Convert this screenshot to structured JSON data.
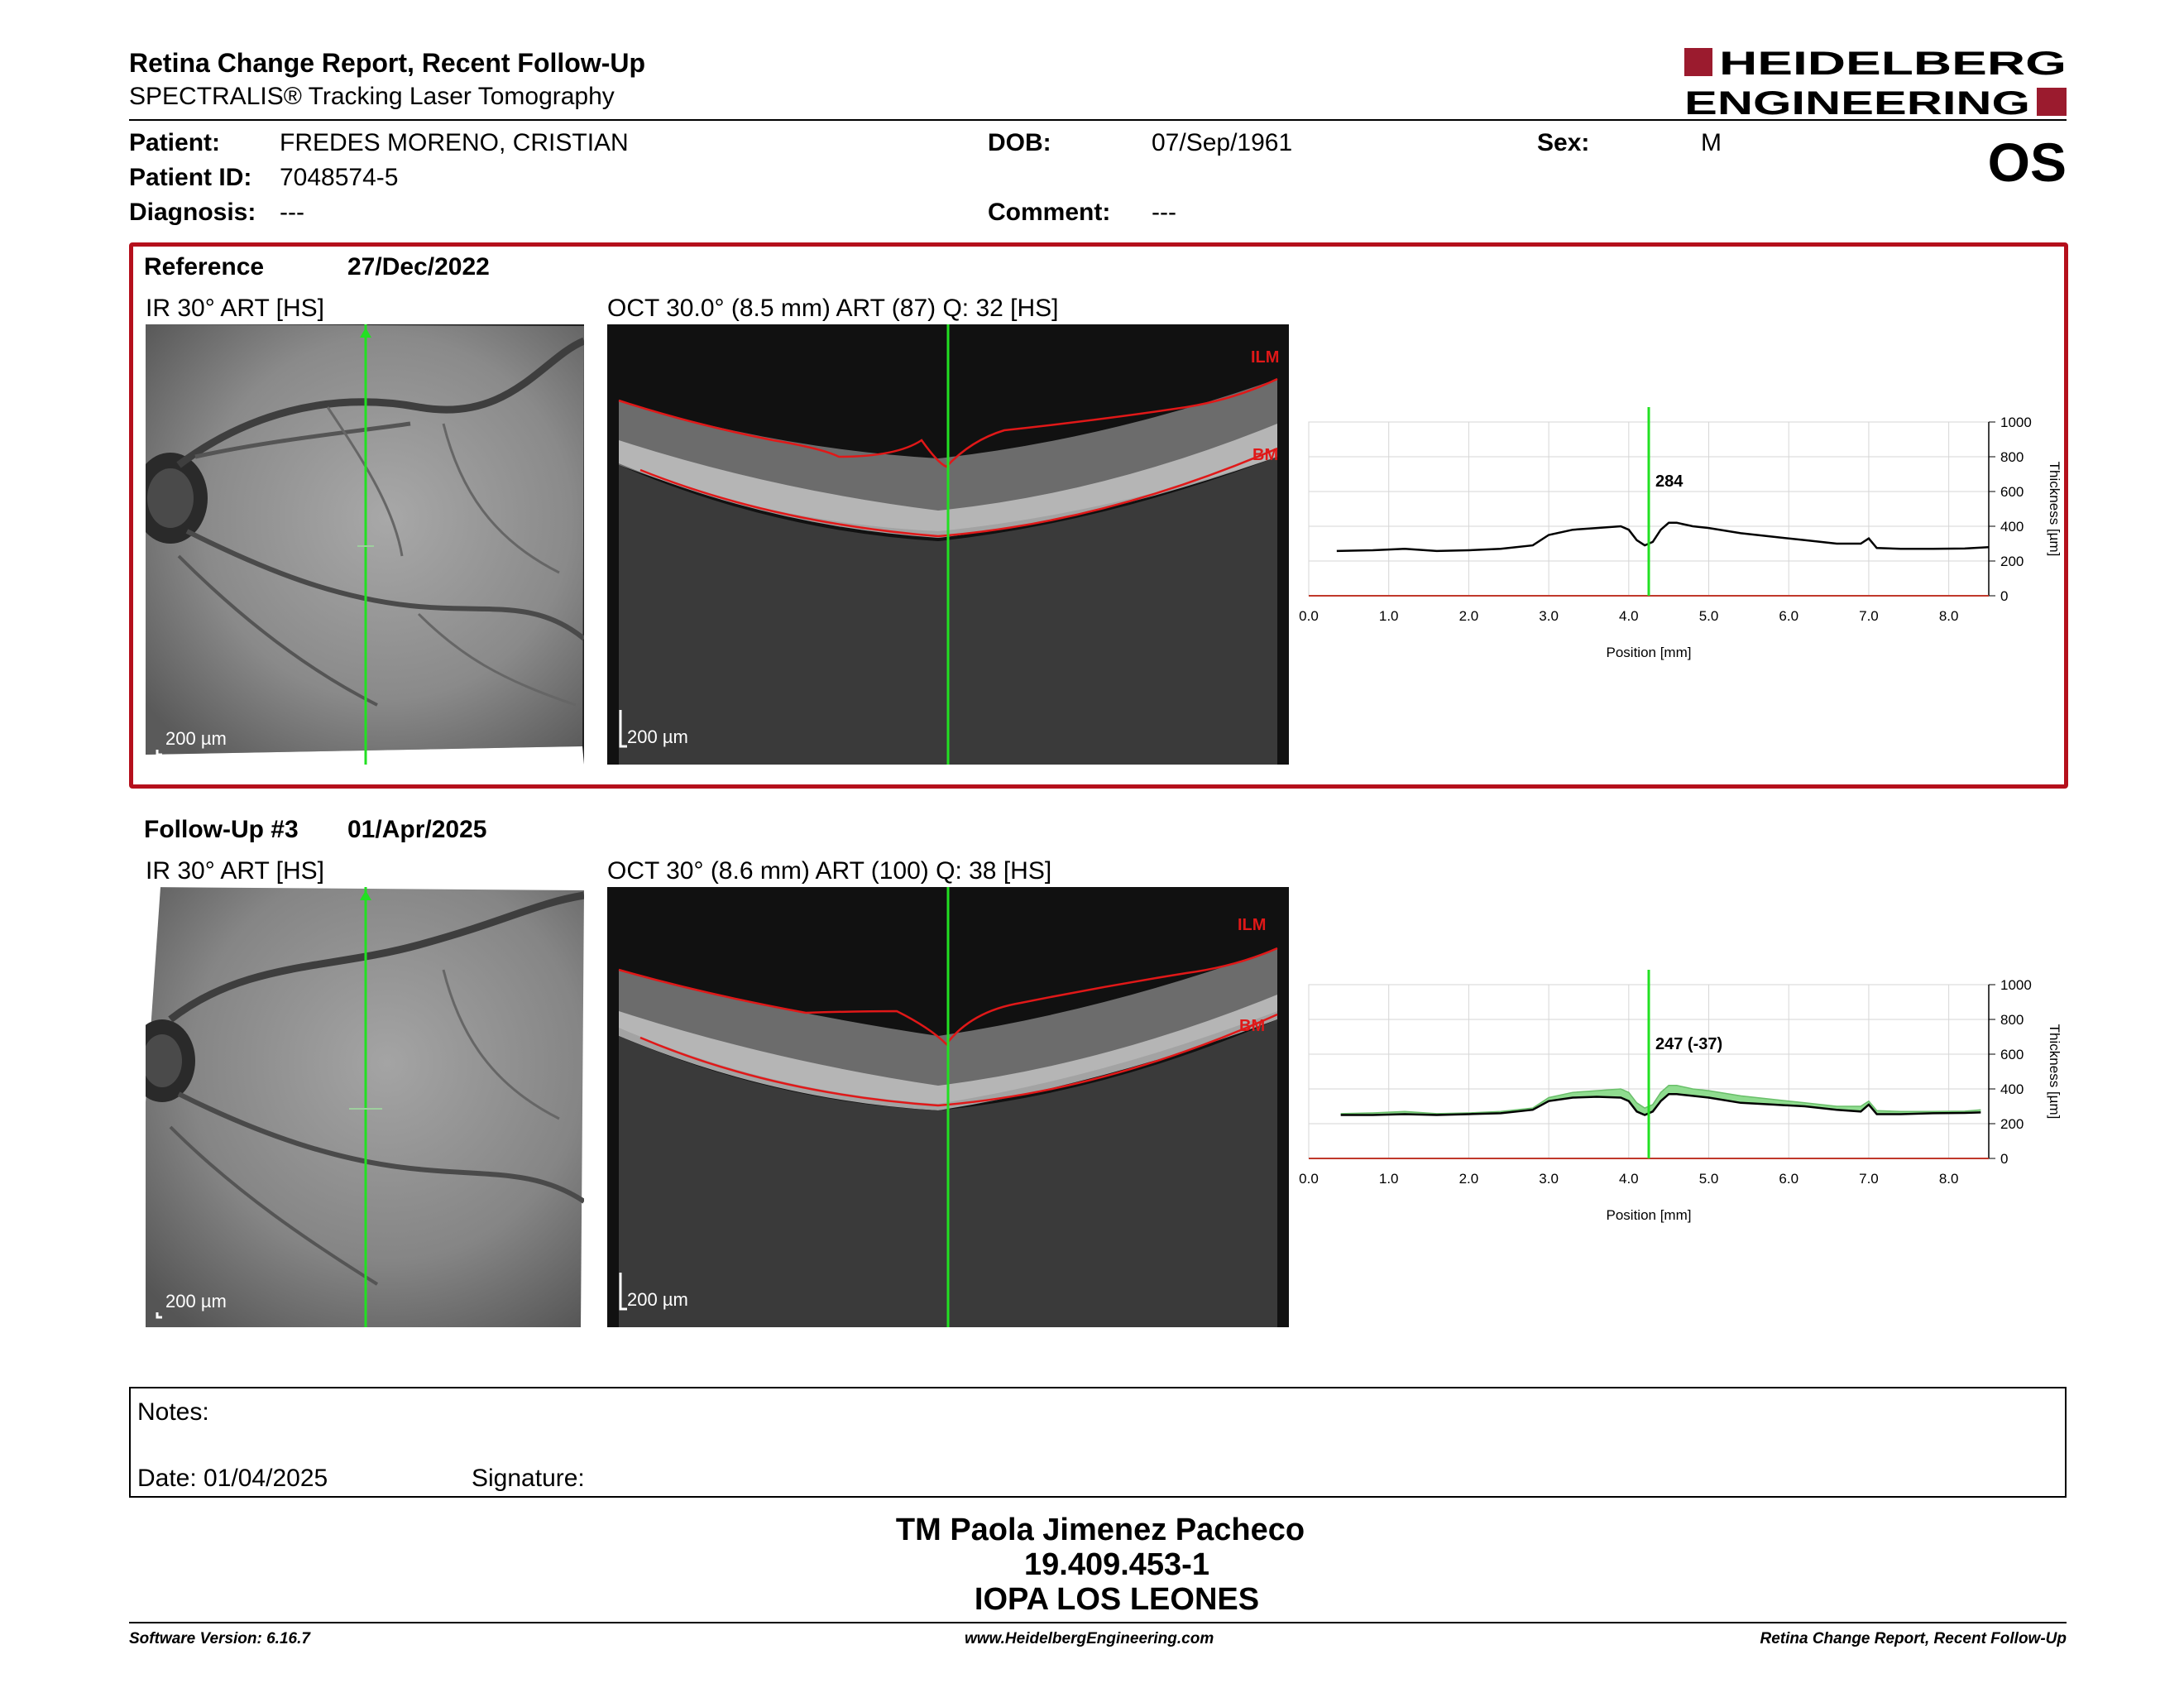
{
  "header": {
    "title": "Retina Change Report, Recent Follow-Up",
    "subtitle": "SPECTRALIS® Tracking Laser Tomography",
    "logo_line1": "HEIDELBERG",
    "logo_line2": "ENGINEERING",
    "eye": "OS",
    "brand_red": "#9b1b2e"
  },
  "patient": {
    "patient_label": "Patient:",
    "patient_value": "FREDES MORENO, CRISTIAN",
    "id_label": "Patient ID:",
    "id_value": "7048574-5",
    "diagnosis_label": "Diagnosis:",
    "diagnosis_value": "---",
    "dob_label": "DOB:",
    "dob_value": "07/Sep/1961",
    "comment_label": "Comment:",
    "comment_value": "---",
    "sex_label": "Sex:",
    "sex_value": "M"
  },
  "reference": {
    "label": "Reference",
    "date": "27/Dec/2022",
    "ir_title": "IR 30° ART [HS]",
    "oct_title": "OCT 30.0° (8.5 mm) ART (87) Q: 32 [HS]",
    "scale_ir": "200 µm",
    "scale_oct": "200 µm",
    "ilm": "ILM",
    "bm": "BM",
    "thickness_label": "284"
  },
  "followup": {
    "label": "Follow-Up #3",
    "date": "01/Apr/2025",
    "ir_title": "IR 30° ART [HS]",
    "oct_title": "OCT 30° (8.6 mm) ART (100) Q: 38 [HS]",
    "scale_ir": "200 µm",
    "scale_oct": "200 µm",
    "ilm": "ILM",
    "bm": "BM",
    "thickness_label": "247 (-37)"
  },
  "chart_data": [
    {
      "type": "line",
      "xlabel": "Position [mm]",
      "ylabel": "Thickness [µm]",
      "xlim": [
        0.0,
        8.5
      ],
      "ylim": [
        0,
        1000
      ],
      "xticks": [
        "0.0",
        "1.0",
        "2.0",
        "3.0",
        "4.0",
        "5.0",
        "6.0",
        "7.0",
        "8.0"
      ],
      "yticks": [
        "0",
        "200",
        "400",
        "600",
        "800",
        "1000"
      ],
      "cursor_x": 4.25,
      "grid": true,
      "series": [
        {
          "color": "#000000",
          "x": [
            0.35,
            0.8,
            1.2,
            1.6,
            2.0,
            2.4,
            2.8,
            3.0,
            3.3,
            3.6,
            3.9,
            4.0,
            4.1,
            4.2,
            4.3,
            4.4,
            4.5,
            4.6,
            4.8,
            5.0,
            5.4,
            5.8,
            6.2,
            6.6,
            6.9,
            7.0,
            7.1,
            7.4,
            7.8,
            8.2,
            8.5
          ],
          "y": [
            258,
            262,
            270,
            258,
            262,
            270,
            290,
            350,
            380,
            390,
            400,
            380,
            320,
            290,
            310,
            380,
            420,
            420,
            400,
            390,
            360,
            340,
            320,
            300,
            300,
            330,
            275,
            270,
            270,
            272,
            280
          ]
        }
      ]
    },
    {
      "type": "area",
      "xlabel": "Position [mm]",
      "ylabel": "Thickness [µm]",
      "xlim": [
        0.0,
        8.5
      ],
      "ylim": [
        0,
        1000
      ],
      "xticks": [
        "0.0",
        "1.0",
        "2.0",
        "3.0",
        "4.0",
        "5.0",
        "6.0",
        "7.0",
        "8.0"
      ],
      "yticks": [
        "0",
        "200",
        "400",
        "600",
        "800",
        "1000"
      ],
      "cursor_x": 4.25,
      "grid": true,
      "fill_color": "#8fdc8f",
      "series": [
        {
          "color": "#000000",
          "x": [
            0.4,
            0.8,
            1.2,
            1.6,
            2.0,
            2.4,
            2.8,
            3.0,
            3.3,
            3.6,
            3.9,
            4.0,
            4.1,
            4.2,
            4.3,
            4.4,
            4.5,
            4.6,
            4.8,
            5.0,
            5.4,
            5.8,
            6.2,
            6.6,
            6.9,
            7.0,
            7.1,
            7.4,
            7.8,
            8.2,
            8.4
          ],
          "y": [
            250,
            250,
            255,
            250,
            255,
            260,
            280,
            330,
            350,
            355,
            350,
            330,
            270,
            250,
            270,
            330,
            370,
            370,
            360,
            350,
            320,
            310,
            300,
            280,
            270,
            310,
            255,
            255,
            260,
            262,
            265
          ]
        },
        {
          "color": "#6abf6a",
          "x": [
            0.4,
            0.8,
            1.2,
            1.6,
            2.0,
            2.4,
            2.8,
            3.0,
            3.3,
            3.6,
            3.9,
            4.0,
            4.1,
            4.2,
            4.3,
            4.4,
            4.5,
            4.6,
            4.8,
            5.0,
            5.4,
            5.8,
            6.2,
            6.6,
            6.9,
            7.0,
            7.1,
            7.4,
            7.8,
            8.2,
            8.4
          ],
          "y": [
            258,
            262,
            270,
            258,
            262,
            270,
            290,
            350,
            380,
            390,
            400,
            380,
            320,
            290,
            310,
            380,
            420,
            420,
            400,
            390,
            360,
            340,
            320,
            300,
            300,
            330,
            275,
            270,
            270,
            272,
            280
          ]
        }
      ]
    }
  ],
  "notes": {
    "notes_label": "Notes:",
    "date_label": "Date: 01/04/2025",
    "signature_label": "Signature:"
  },
  "signature_block": {
    "name": "TM Paola Jimenez Pacheco",
    "rut": "19.409.453-1",
    "clinic": "IOPA LOS LEONES"
  },
  "footer": {
    "software": "Software Version: 6.16.7",
    "website": "www.HeidelbergEngineering.com",
    "report_name": "Retina Change Report, Recent Follow-Up"
  }
}
